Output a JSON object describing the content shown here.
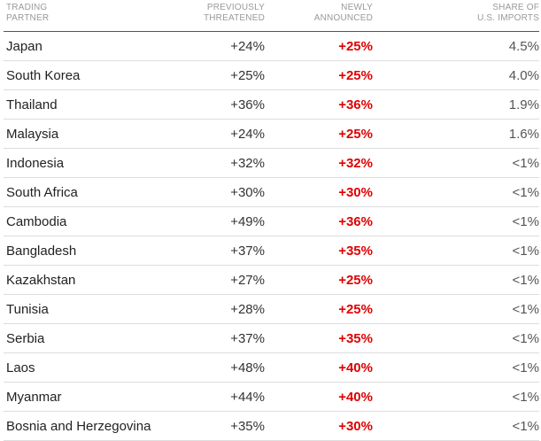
{
  "headers": {
    "partner": [
      "Trading",
      "Partner"
    ],
    "previous": [
      "Previously",
      "Threatened"
    ],
    "new": [
      "Newly",
      "Announced"
    ],
    "share": [
      "Share of",
      "U.S. Imports"
    ]
  },
  "rows": [
    {
      "partner": "Japan",
      "previous": "+24%",
      "new": "+25%",
      "share": "4.5%"
    },
    {
      "partner": "South Korea",
      "previous": "+25%",
      "new": "+25%",
      "share": "4.0%"
    },
    {
      "partner": "Thailand",
      "previous": "+36%",
      "new": "+36%",
      "share": "1.9%"
    },
    {
      "partner": "Malaysia",
      "previous": "+24%",
      "new": "+25%",
      "share": "1.6%"
    },
    {
      "partner": "Indonesia",
      "previous": "+32%",
      "new": "+32%",
      "share": "<1%"
    },
    {
      "partner": "South Africa",
      "previous": "+30%",
      "new": "+30%",
      "share": "<1%"
    },
    {
      "partner": "Cambodia",
      "previous": "+49%",
      "new": "+36%",
      "share": "<1%"
    },
    {
      "partner": "Bangladesh",
      "previous": "+37%",
      "new": "+35%",
      "share": "<1%"
    },
    {
      "partner": "Kazakhstan",
      "previous": "+27%",
      "new": "+25%",
      "share": "<1%"
    },
    {
      "partner": "Tunisia",
      "previous": "+28%",
      "new": "+25%",
      "share": "<1%"
    },
    {
      "partner": "Serbia",
      "previous": "+37%",
      "new": "+35%",
      "share": "<1%"
    },
    {
      "partner": "Laos",
      "previous": "+48%",
      "new": "+40%",
      "share": "<1%"
    },
    {
      "partner": "Myanmar",
      "previous": "+44%",
      "new": "+40%",
      "share": "<1%"
    },
    {
      "partner": "Bosnia and Herzegovina",
      "previous": "+35%",
      "new": "+30%",
      "share": "<1%"
    }
  ],
  "colors": {
    "new_value": "#e00000",
    "header_text": "#999999",
    "row_divider": "#dddddd",
    "header_divider": "#555555"
  }
}
